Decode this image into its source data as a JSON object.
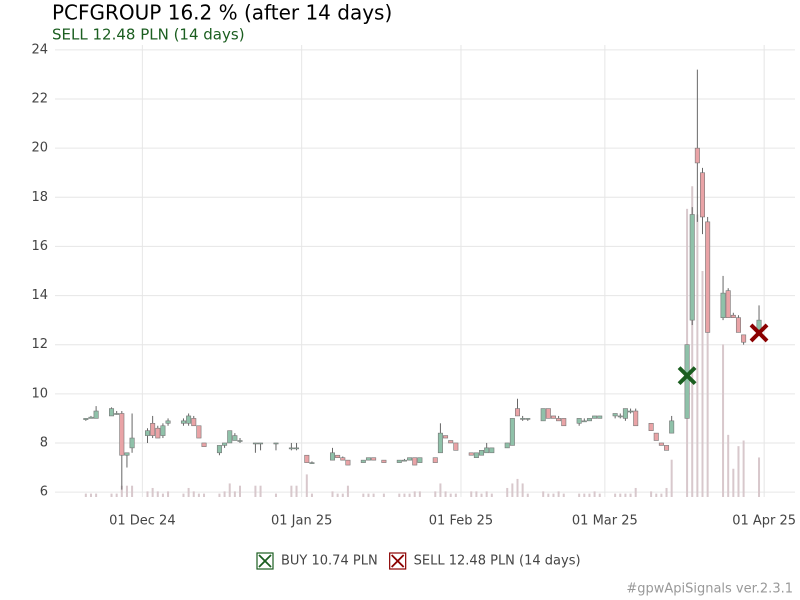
{
  "chart_data": {
    "type": "candlestick",
    "title": "PCFGROUP 16.2 % (after 14 days)",
    "subtitle": "SELL 12.48 PLN (14 days)",
    "caption": "#gpwApiSignals ver.2.3.1",
    "x": [
      "2024-11-20",
      "2024-11-21",
      "2024-11-22",
      "2024-11-25",
      "2024-11-26",
      "2024-11-27",
      "2024-11-28",
      "2024-11-29",
      "2024-12-02",
      "2024-12-03",
      "2024-12-04",
      "2024-12-05",
      "2024-12-06",
      "2024-12-09",
      "2024-12-10",
      "2024-12-11",
      "2024-12-12",
      "2024-12-13",
      "2024-12-16",
      "2024-12-17",
      "2024-12-18",
      "2024-12-19",
      "2024-12-20",
      "2024-12-23",
      "2024-12-24",
      "2024-12-27",
      "2024-12-30",
      "2024-12-31",
      "2025-01-02",
      "2025-01-03",
      "2025-01-07",
      "2025-01-08",
      "2025-01-09",
      "2025-01-10",
      "2025-01-13",
      "2025-01-14",
      "2025-01-15",
      "2025-01-17",
      "2025-01-20",
      "2025-01-21",
      "2025-01-22",
      "2025-01-23",
      "2025-01-24",
      "2025-01-27",
      "2025-01-28",
      "2025-01-29",
      "2025-01-30",
      "2025-01-31",
      "2025-02-03",
      "2025-02-04",
      "2025-02-05",
      "2025-02-06",
      "2025-02-07",
      "2025-02-10",
      "2025-02-11",
      "2025-02-12",
      "2025-02-13",
      "2025-02-14",
      "2025-02-17",
      "2025-02-18",
      "2025-02-19",
      "2025-02-20",
      "2025-02-21",
      "2025-02-24",
      "2025-02-25",
      "2025-02-26",
      "2025-02-27",
      "2025-02-28",
      "2025-03-03",
      "2025-03-04",
      "2025-03-05",
      "2025-03-06",
      "2025-03-07",
      "2025-03-10",
      "2025-03-11",
      "2025-03-12",
      "2025-03-13",
      "2025-03-14",
      "2025-03-17",
      "2025-03-18",
      "2025-03-19",
      "2025-03-20",
      "2025-03-21",
      "2025-03-24",
      "2025-03-25",
      "2025-03-26",
      "2025-03-27",
      "2025-03-28",
      "2025-03-31"
    ],
    "open": [
      8.95,
      9.0,
      9.0,
      9.1,
      9.2,
      9.2,
      7.5,
      7.8,
      8.3,
      8.8,
      8.6,
      8.3,
      8.8,
      8.8,
      8.8,
      9.0,
      8.7,
      8.0,
      7.6,
      7.9,
      8.0,
      8.1,
      8.1,
      8.0,
      8.0,
      8.0,
      7.8,
      7.8,
      7.5,
      7.2,
      7.3,
      7.5,
      7.4,
      7.3,
      7.2,
      7.3,
      7.4,
      7.3,
      7.2,
      7.3,
      7.3,
      7.4,
      7.2,
      7.4,
      7.6,
      8.3,
      8.1,
      8.0,
      7.6,
      7.4,
      7.5,
      7.6,
      7.6,
      7.8,
      7.9,
      9.4,
      9.0,
      9.0,
      8.9,
      9.4,
      9.1,
      9.0,
      9.0,
      8.8,
      8.9,
      8.9,
      9.0,
      9.0,
      9.1,
      9.1,
      9.0,
      9.3,
      9.3,
      8.8,
      8.4,
      8.0,
      7.9,
      8.4,
      9.0,
      13.0,
      20.0,
      19.0,
      17.0,
      13.1,
      14.2,
      13.2,
      13.1,
      12.4,
      12.6
    ],
    "high": [
      9.0,
      9.1,
      9.5,
      9.45,
      9.3,
      9.3,
      7.6,
      9.2,
      8.6,
      9.1,
      8.7,
      8.8,
      9.0,
      9.0,
      9.2,
      9.1,
      8.7,
      8.0,
      7.9,
      8.0,
      8.5,
      8.4,
      8.2,
      8.0,
      8.0,
      8.0,
      8.0,
      8.0,
      7.5,
      7.25,
      7.8,
      7.5,
      7.45,
      7.3,
      7.3,
      7.4,
      7.4,
      7.3,
      7.3,
      7.35,
      7.4,
      7.4,
      7.4,
      7.4,
      8.8,
      8.3,
      8.1,
      8.0,
      7.6,
      7.6,
      7.7,
      8.0,
      7.8,
      8.0,
      9.0,
      9.8,
      9.1,
      9.0,
      9.4,
      9.4,
      9.1,
      9.1,
      9.0,
      9.0,
      9.0,
      9.0,
      9.1,
      9.1,
      9.2,
      9.2,
      9.4,
      9.4,
      9.4,
      8.8,
      8.4,
      8.0,
      7.9,
      9.1,
      12.0,
      17.6,
      23.2,
      19.2,
      17.2,
      14.8,
      14.3,
      13.3,
      13.2,
      12.4,
      13.6
    ],
    "low": [
      8.9,
      9.0,
      9.0,
      9.1,
      9.15,
      6.1,
      7.0,
      7.6,
      8.0,
      8.2,
      8.2,
      8.2,
      8.7,
      8.7,
      8.7,
      8.7,
      8.2,
      7.85,
      7.5,
      7.8,
      8.0,
      8.1,
      8.0,
      7.6,
      7.7,
      7.7,
      7.7,
      7.7,
      7.2,
      7.15,
      7.3,
      7.4,
      7.3,
      7.1,
      7.2,
      7.3,
      7.3,
      7.2,
      7.2,
      7.25,
      7.3,
      7.1,
      7.2,
      7.2,
      7.6,
      8.2,
      8.0,
      7.7,
      7.5,
      7.4,
      7.5,
      7.6,
      7.6,
      7.8,
      7.9,
      9.1,
      8.9,
      8.9,
      8.9,
      9.0,
      9.0,
      8.9,
      8.7,
      8.7,
      8.9,
      8.9,
      9.0,
      9.0,
      9.0,
      9.0,
      8.9,
      9.2,
      8.7,
      8.5,
      8.1,
      7.9,
      7.7,
      8.4,
      9.0,
      12.8,
      17.0,
      16.5,
      12.5,
      13.0,
      13.1,
      13.1,
      12.5,
      12.0,
      12.5
    ],
    "close": [
      9.0,
      9.05,
      9.3,
      9.4,
      9.2,
      7.5,
      7.6,
      8.2,
      8.5,
      8.3,
      8.2,
      8.7,
      8.9,
      8.9,
      9.1,
      8.7,
      8.2,
      7.85,
      7.9,
      8.0,
      8.5,
      8.3,
      8.1,
      8.0,
      8.0,
      8.0,
      7.8,
      7.8,
      7.2,
      7.2,
      7.6,
      7.4,
      7.3,
      7.1,
      7.3,
      7.4,
      7.3,
      7.2,
      7.3,
      7.3,
      7.4,
      7.1,
      7.4,
      7.2,
      8.4,
      8.2,
      8.0,
      7.7,
      7.5,
      7.6,
      7.7,
      7.8,
      7.8,
      8.0,
      9.0,
      9.1,
      9.0,
      9.0,
      9.4,
      9.0,
      9.0,
      8.9,
      8.7,
      9.0,
      8.9,
      9.0,
      9.1,
      9.1,
      9.2,
      9.1,
      9.4,
      9.3,
      8.7,
      8.5,
      8.1,
      7.9,
      7.7,
      8.9,
      12.0,
      17.3,
      19.4,
      17.2,
      12.5,
      14.1,
      13.1,
      13.1,
      12.5,
      12.1,
      13.0
    ],
    "volume": [
      3,
      3,
      3,
      3,
      3,
      10,
      10,
      10,
      5,
      8,
      5,
      3,
      5,
      3,
      8,
      5,
      3,
      3,
      3,
      5,
      12,
      5,
      10,
      10,
      10,
      3,
      10,
      10,
      20,
      3,
      5,
      3,
      3,
      10,
      3,
      3,
      3,
      3,
      3,
      3,
      3,
      5,
      5,
      5,
      12,
      5,
      3,
      3,
      5,
      5,
      3,
      5,
      3,
      8,
      12,
      16,
      12,
      3,
      5,
      3,
      3,
      5,
      3,
      3,
      3,
      3,
      5,
      3,
      3,
      3,
      3,
      3,
      8,
      5,
      3,
      3,
      8,
      33,
      255,
      275,
      250,
      200,
      200,
      135,
      55,
      25,
      45,
      50,
      35
    ],
    "up_color": "#8fc1a9",
    "down_color": "#e9a3a6",
    "wick_color": "#666666",
    "volume_color": "#d8c8cc",
    "xlim": [
      "2024-11-14",
      "2025-04-07"
    ],
    "xticks": [
      {
        "value": "2024-12-01",
        "label": "01 Dec 24"
      },
      {
        "value": "2025-01-01",
        "label": "01 Jan 25"
      },
      {
        "value": "2025-02-01",
        "label": "01 Feb 25"
      },
      {
        "value": "2025-03-01",
        "label": "01 Mar 25"
      },
      {
        "value": "2025-04-01",
        "label": "01 Apr 25"
      }
    ],
    "ylim": [
      5.8,
      24.2
    ],
    "yticks": [
      6,
      8,
      10,
      12,
      14,
      16,
      18,
      20,
      22,
      24
    ],
    "y2lim": [
      0,
      400
    ],
    "grid": true,
    "markers": [
      {
        "name": "BUY 10.74 PLN",
        "x": "2025-03-17",
        "value": 10.74,
        "color": "#1b5e20"
      },
      {
        "name": "SELL 12.48 PLN (14 days)",
        "x": "2025-03-31",
        "value": 12.48,
        "color": "#8b0000"
      }
    ]
  }
}
